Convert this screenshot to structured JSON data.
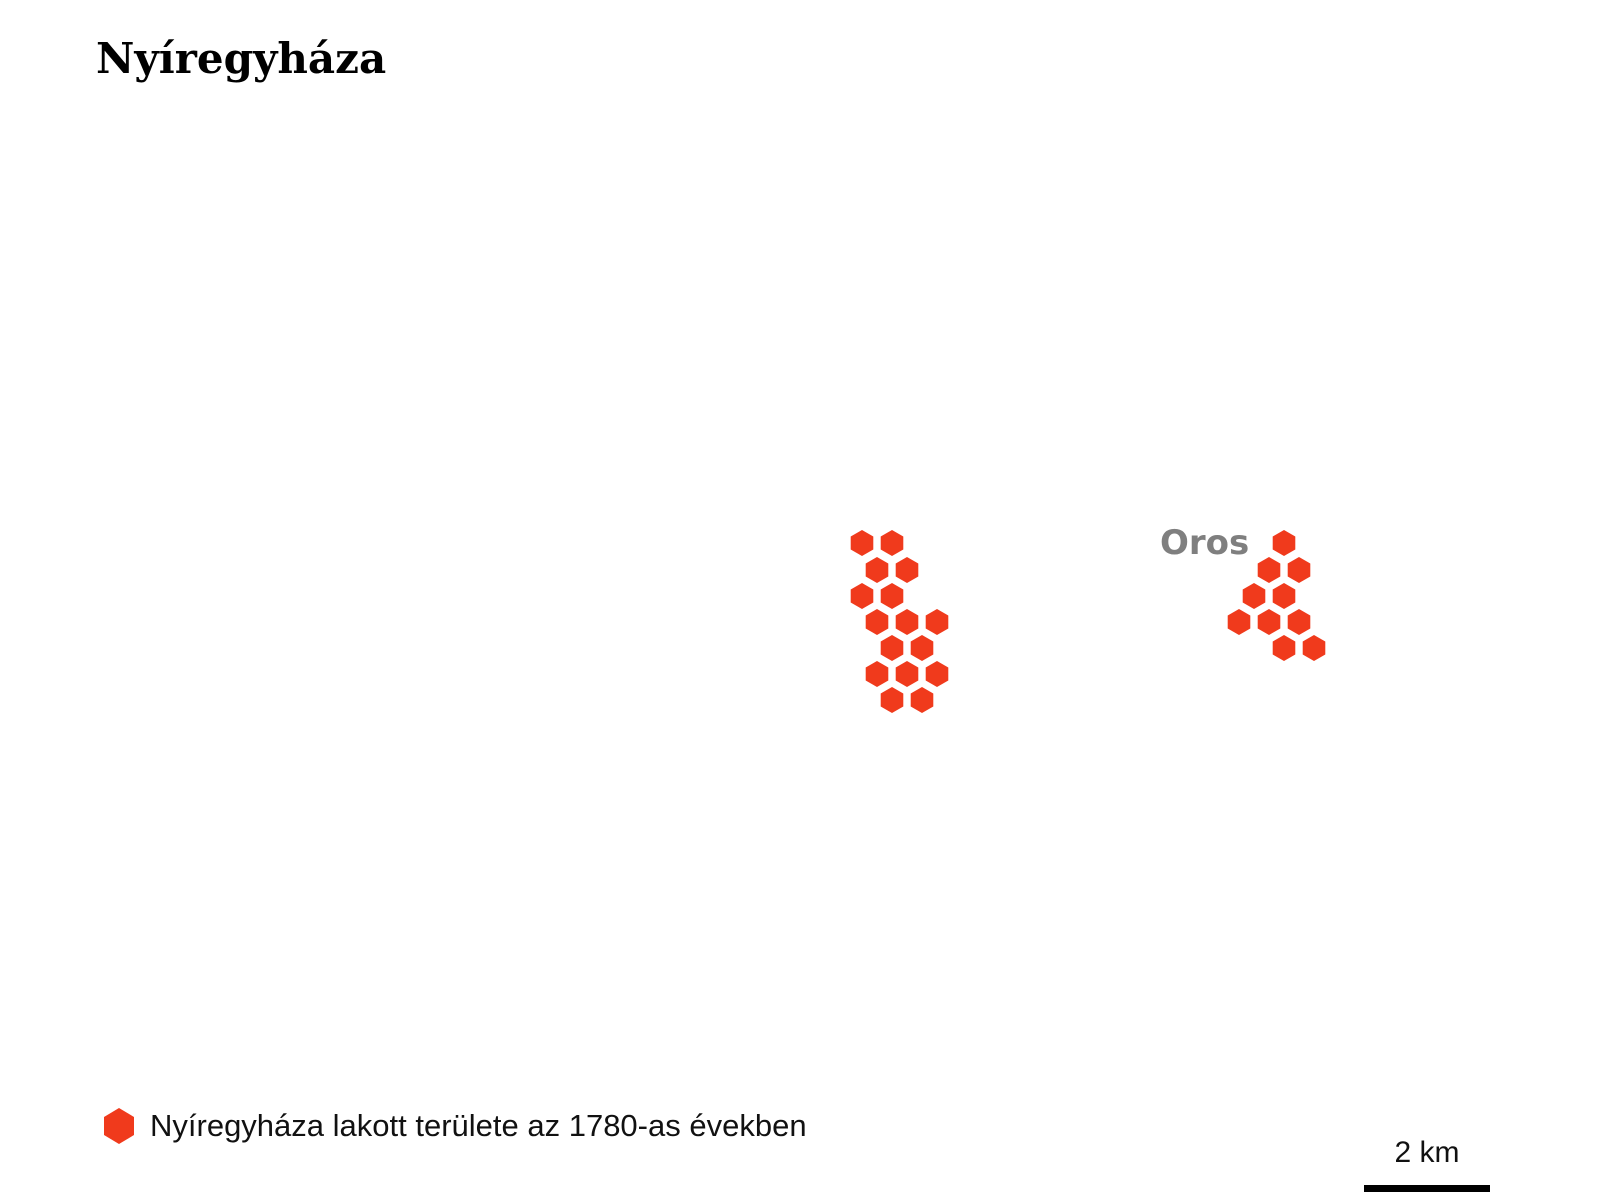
{
  "title": "Nyíregyháza",
  "colors": {
    "settlement": "#f03a1c",
    "label": "#7f7f7f",
    "text": "#111111"
  },
  "places": [
    {
      "name": "Oros"
    }
  ],
  "legend": {
    "icon": "hexagon-icon",
    "label": "Nyíregyháza lakott területe az 1780-as években"
  },
  "scale": {
    "label": "2 km"
  }
}
